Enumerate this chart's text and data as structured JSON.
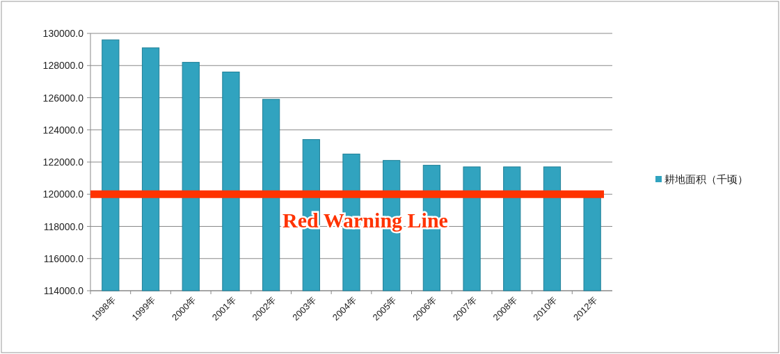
{
  "chart_data": {
    "type": "bar",
    "categories": [
      "1998年",
      "1999年",
      "2000年",
      "2001年",
      "2002年",
      "2003年",
      "2004年",
      "2005年",
      "2006年",
      "2007年",
      "2008年",
      "2010年",
      "2012年"
    ],
    "series": [
      {
        "name": "耕地面积（千顷）",
        "color": "#31a3bf",
        "values": [
          129600,
          129100,
          128200,
          127600,
          125900,
          123400,
          122500,
          122100,
          121800,
          121700,
          121700,
          121700,
          119800
        ]
      }
    ],
    "ylim": [
      114000,
      130000
    ],
    "yticks": [
      {
        "value": 114000,
        "label": "114000.0"
      },
      {
        "value": 116000,
        "label": "116000.0"
      },
      {
        "value": 118000,
        "label": "118000.0"
      },
      {
        "value": 120000,
        "label": "120000.0"
      },
      {
        "value": 122000,
        "label": "122000.0"
      },
      {
        "value": 124000,
        "label": "124000.0"
      },
      {
        "value": 126000,
        "label": "126000.0"
      },
      {
        "value": 128000,
        "label": "128000.0"
      },
      {
        "value": 130000,
        "label": "130000.0"
      }
    ],
    "grid": "y",
    "legend": "right",
    "ref_lines": [
      {
        "axis": "y",
        "value": 120000,
        "label": "Red Warning Line",
        "color": "#ff3300"
      }
    ]
  }
}
